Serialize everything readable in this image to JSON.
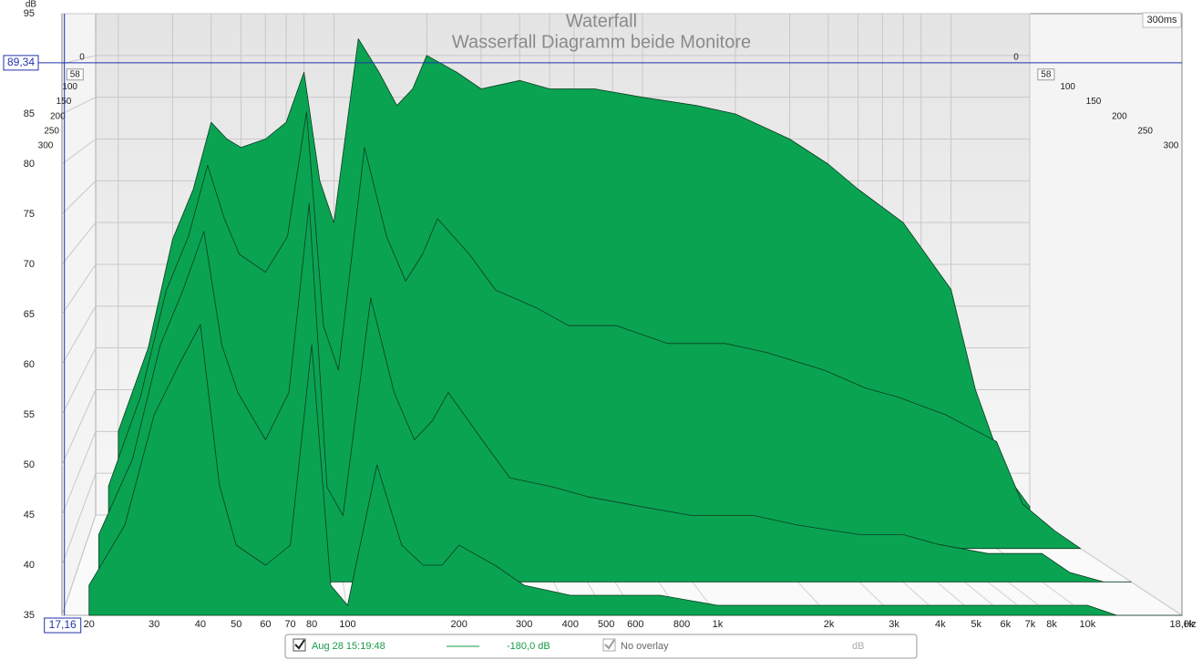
{
  "chart_data": {
    "type": "waterfall",
    "title": "Waterfall",
    "subtitle": "Wasserfall Diagramm beide Monitore",
    "y_label": "dB",
    "x_unit": "Hz",
    "time_range_label": "300ms",
    "color": "#0aa352",
    "xlim": [
      16.9,
      18000
    ],
    "ylim": [
      35,
      95
    ],
    "yticks": [
      35,
      40,
      45,
      50,
      55,
      60,
      65,
      70,
      75,
      80,
      85,
      90,
      95
    ],
    "xticks": [
      20,
      30,
      40,
      50,
      60,
      70,
      80,
      100,
      200,
      300,
      400,
      500,
      600,
      800,
      {
        "value": 1000,
        "label": "1k"
      },
      {
        "value": 2000,
        "label": "2k"
      },
      {
        "value": 3000,
        "label": "3k"
      },
      {
        "value": 4000,
        "label": "4k"
      },
      {
        "value": 5000,
        "label": "5k"
      },
      {
        "value": 6000,
        "label": "6k"
      },
      {
        "value": 7000,
        "label": "7k"
      },
      {
        "value": 8000,
        "label": "8k"
      },
      {
        "value": 10000,
        "label": "10k"
      },
      {
        "value": 18000,
        "label": "18,0k"
      }
    ],
    "tlim": [
      0,
      300
    ],
    "time_ticks": [
      0,
      100,
      150,
      200,
      250,
      300
    ],
    "cursor": {
      "freq": {
        "value": 17.16,
        "label": "17,16"
      },
      "level": {
        "value": 89.34,
        "label": "89,34"
      },
      "time": 58
    },
    "x": [
      20,
      25,
      30,
      35,
      40,
      45,
      50,
      60,
      70,
      80,
      90,
      100,
      120,
      140,
      160,
      180,
      200,
      250,
      300,
      400,
      500,
      700,
      1000,
      1500,
      2000,
      3000,
      4000,
      5000,
      7000,
      10000,
      12000,
      15000,
      18000
    ],
    "series": [
      {
        "time": 0,
        "values": [
          45,
          55,
          68,
          74,
          82,
          80,
          79,
          80,
          82,
          88,
          75,
          70,
          92,
          88,
          84,
          86,
          90,
          88,
          86,
          87,
          86,
          86,
          85,
          84,
          83,
          80,
          77,
          74,
          70,
          62,
          50,
          40,
          36
        ]
      },
      {
        "time": 100,
        "values": [
          42,
          52,
          64,
          70,
          78,
          72,
          68,
          66,
          70,
          84,
          60,
          55,
          80,
          70,
          65,
          68,
          72,
          68,
          64,
          62,
          60,
          60,
          58,
          58,
          57,
          55,
          53,
          52,
          50,
          47,
          40,
          37,
          35
        ]
      },
      {
        "time": 200,
        "values": [
          40,
          48,
          60,
          66,
          72,
          60,
          55,
          50,
          55,
          75,
          45,
          42,
          65,
          55,
          50,
          52,
          55,
          50,
          46,
          45,
          44,
          43,
          42,
          42,
          41,
          40,
          40,
          39,
          38,
          38,
          36,
          35,
          35
        ]
      },
      {
        "time": 300,
        "values": [
          38,
          44,
          55,
          60,
          64,
          48,
          42,
          40,
          42,
          62,
          38,
          36,
          50,
          42,
          40,
          40,
          42,
          40,
          38,
          37,
          37,
          37,
          36,
          36,
          36,
          36,
          36,
          36,
          36,
          36,
          35,
          35,
          35
        ]
      }
    ]
  },
  "legend": {
    "series_name": "Aug 28 15:19:48",
    "level": "-180,0 dB",
    "overlay": "No overlay",
    "unit": "dB"
  }
}
